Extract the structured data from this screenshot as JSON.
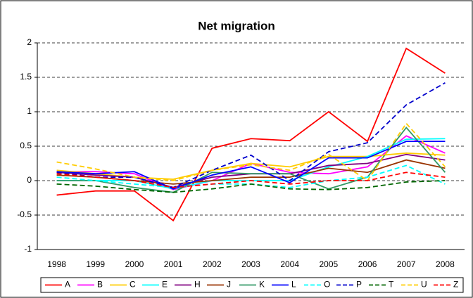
{
  "chart_data": {
    "type": "line",
    "title": "Net migration",
    "categories": [
      "1998",
      "1999",
      "2000",
      "2001",
      "2002",
      "2003",
      "2004",
      "2005",
      "2006",
      "2007",
      "2008"
    ],
    "ylim": [
      -1,
      2
    ],
    "yticks": [
      -1,
      -0.5,
      0,
      0.5,
      1,
      1.5,
      2
    ],
    "grid": true,
    "legend": "bottom",
    "series": [
      {
        "name": "A",
        "color": "#ff0000",
        "dashed": false,
        "values": [
          -0.21,
          -0.15,
          -0.15,
          -0.58,
          0.47,
          0.61,
          0.58,
          1.0,
          0.57,
          1.92,
          1.56
        ]
      },
      {
        "name": "B",
        "color": "#ff00ff",
        "dashed": false,
        "values": [
          0.13,
          0.13,
          0.1,
          -0.13,
          0.0,
          0.25,
          0.12,
          0.1,
          0.2,
          0.65,
          0.4
        ]
      },
      {
        "name": "C",
        "color": "#ffcc00",
        "dashed": false,
        "values": [
          0.15,
          0.1,
          0.05,
          0.02,
          0.15,
          0.25,
          0.2,
          0.35,
          0.35,
          0.4,
          0.37
        ]
      },
      {
        "name": "E",
        "color": "#00ffff",
        "dashed": false,
        "values": [
          0.0,
          0.0,
          0.0,
          -0.12,
          0.0,
          0.0,
          0.0,
          0.2,
          0.35,
          0.6,
          0.61
        ]
      },
      {
        "name": "H",
        "color": "#800080",
        "dashed": false,
        "values": [
          0.12,
          0.08,
          0.05,
          -0.1,
          0.05,
          0.1,
          0.1,
          0.22,
          0.25,
          0.38,
          0.3
        ]
      },
      {
        "name": "J",
        "color": "#993300",
        "dashed": false,
        "values": [
          0.08,
          0.05,
          0.0,
          -0.05,
          0.0,
          0.05,
          0.05,
          0.18,
          0.12,
          0.3,
          0.18
        ]
      },
      {
        "name": "K",
        "color": "#339966",
        "dashed": false,
        "values": [
          0.0,
          0.0,
          -0.1,
          -0.17,
          0.12,
          0.1,
          0.1,
          -0.12,
          0.05,
          0.77,
          0.12
        ]
      },
      {
        "name": "L",
        "color": "#0000ff",
        "dashed": false,
        "values": [
          0.13,
          0.1,
          0.13,
          -0.12,
          0.08,
          0.2,
          -0.03,
          0.33,
          0.33,
          0.57,
          0.57
        ]
      },
      {
        "name": "O",
        "color": "#00ffff",
        "dashed": true,
        "values": [
          0.05,
          0.0,
          -0.05,
          -0.1,
          -0.05,
          -0.05,
          -0.1,
          0.0,
          0.05,
          0.22,
          -0.05
        ]
      },
      {
        "name": "P",
        "color": "#0000cc",
        "dashed": true,
        "values": [
          0.12,
          0.05,
          0.05,
          -0.1,
          0.15,
          0.37,
          0.0,
          0.42,
          0.55,
          1.1,
          1.42
        ]
      },
      {
        "name": "T",
        "color": "#006600",
        "dashed": true,
        "values": [
          -0.05,
          -0.08,
          -0.13,
          -0.17,
          -0.12,
          -0.05,
          -0.12,
          -0.13,
          -0.1,
          -0.02,
          0.0
        ]
      },
      {
        "name": "U",
        "color": "#ffcc00",
        "dashed": true,
        "values": [
          0.27,
          0.17,
          0.05,
          0.0,
          0.15,
          0.23,
          0.15,
          0.38,
          0.0,
          0.83,
          0.2
        ]
      },
      {
        "name": "Z",
        "color": "#ff0000",
        "dashed": true,
        "values": [
          0.1,
          0.05,
          0.0,
          -0.1,
          -0.05,
          0.0,
          -0.05,
          0.0,
          0.0,
          0.12,
          0.05
        ]
      }
    ]
  }
}
